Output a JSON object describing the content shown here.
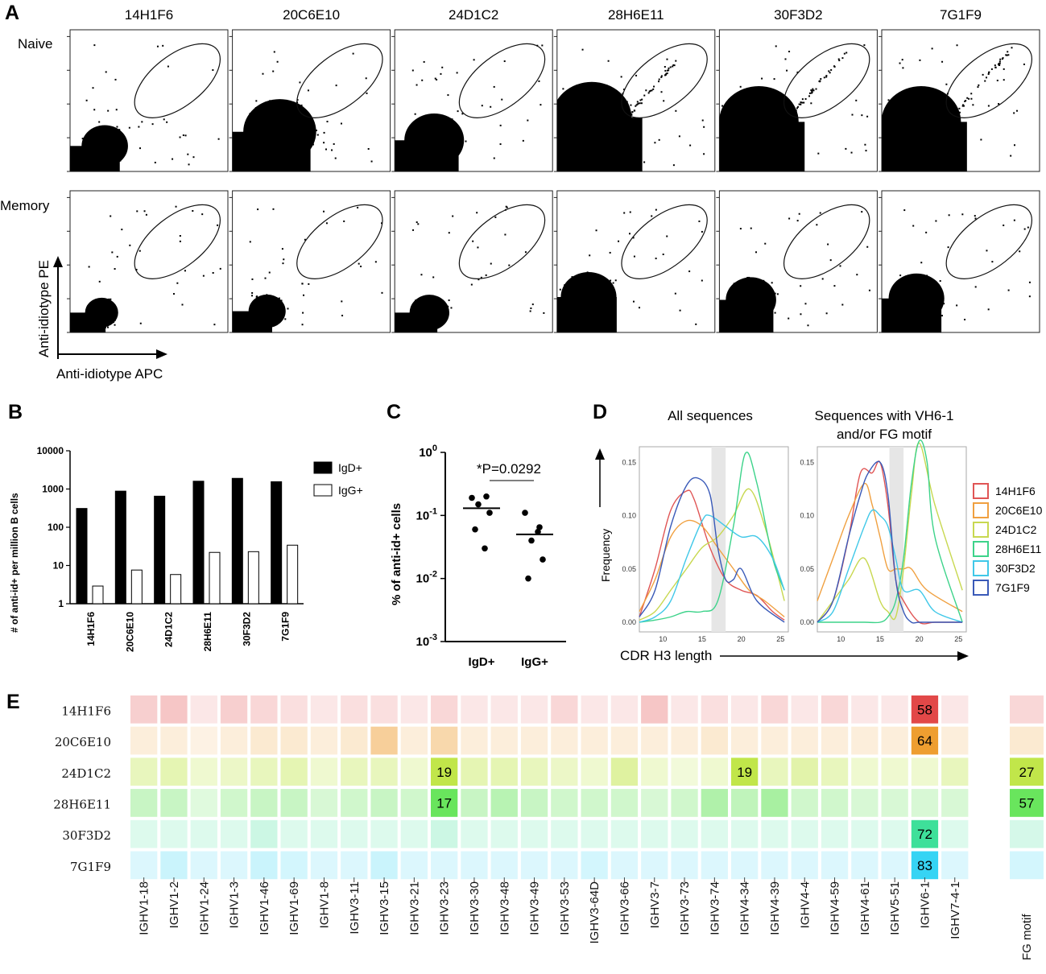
{
  "panelA": {
    "label": "A",
    "clones": [
      "14H1F6",
      "20C6E10",
      "24D1C2",
      "28H6E11",
      "30F3D2",
      "7G1F9"
    ],
    "row_labels": [
      "Naive",
      "Memory"
    ],
    "xlabel": "Anti-idiotype APC",
    "ylabel": "Anti-idiotype PE"
  },
  "panelD": {
    "label": "D",
    "title_left": "All sequences",
    "title_right_line1": "Sequences with VH6-1",
    "title_right_line2": "and/or FG motif",
    "ylabel": "Frequency",
    "xlabel": "CDR H3 length",
    "yticks": [
      "0.00",
      "0.05",
      "0.10",
      "0.15"
    ],
    "xticks": [
      "10",
      "15",
      "20",
      "25"
    ]
  },
  "panelE_label": "E",
  "chart_data": [
    {
      "panel": "B",
      "type": "bar",
      "label": "B",
      "ylabel": "# of anti-id+ per million B cells",
      "yscale": "log",
      "ylim": [
        1,
        10000
      ],
      "yticks": [
        "1",
        "10",
        "100",
        "1000",
        "10000"
      ],
      "categories": [
        "14H1F6",
        "20C6E10",
        "24D1C2",
        "28H6E11",
        "30F3D2",
        "7G1F9"
      ],
      "series": [
        {
          "name": "IgD+",
          "color": "#000000",
          "values": [
            310,
            880,
            650,
            1600,
            1900,
            1550
          ]
        },
        {
          "name": "IgG+",
          "color": "#ffffff",
          "values": [
            2.9,
            7.6,
            5.8,
            22,
            23,
            34
          ]
        }
      ]
    },
    {
      "panel": "C",
      "type": "scatter",
      "label": "C",
      "ylabel": "% of anti-id+ cells",
      "yscale": "log",
      "ylim": [
        0.001,
        1
      ],
      "ytick_base": "10",
      "ytick_exps": [
        "0",
        "-1",
        "-2",
        "-3"
      ],
      "categories": [
        "IgD+",
        "IgG+"
      ],
      "annotation": "*P=0.0292",
      "groups": [
        {
          "name": "IgD+",
          "values": [
            0.19,
            0.2,
            0.15,
            0.11,
            0.06,
            0.03
          ],
          "mean": 0.13
        },
        {
          "name": "IgG+",
          "values": [
            0.11,
            0.065,
            0.04,
            0.02,
            0.01,
            0.055
          ],
          "mean": 0.05
        }
      ]
    },
    {
      "panel": "D",
      "type": "line",
      "label": "D",
      "x_range": [
        7,
        26
      ],
      "y_range": [
        0,
        0.16
      ],
      "highlight_x": [
        16.2,
        18.0
      ],
      "legend": [
        {
          "name": "14H1F6",
          "color": "#e05555"
        },
        {
          "name": "20C6E10",
          "color": "#f0a040"
        },
        {
          "name": "24D1C2",
          "color": "#c8d850"
        },
        {
          "name": "28H6E11",
          "color": "#3dd38a"
        },
        {
          "name": "30F3D2",
          "color": "#40c8e8"
        },
        {
          "name": "7G1F9",
          "color": "#3a5ab8"
        }
      ],
      "subplots": [
        {
          "name": "All sequences",
          "series": [
            {
              "name": "14H1F6",
              "x": [
                7,
                9,
                11,
                13,
                14,
                16,
                18,
                20,
                22,
                24,
                25.5
              ],
              "y": [
                0.005,
                0.05,
                0.105,
                0.123,
                0.115,
                0.07,
                0.04,
                0.03,
                0.025,
                0.01,
                0.002
              ]
            },
            {
              "name": "20C6E10",
              "x": [
                7,
                9,
                11,
                13,
                15,
                17,
                19,
                21,
                23,
                25.5
              ],
              "y": [
                0.01,
                0.04,
                0.08,
                0.095,
                0.09,
                0.07,
                0.05,
                0.03,
                0.02,
                0.005
              ]
            },
            {
              "name": "24D1C2",
              "x": [
                7,
                9,
                11,
                13,
                15,
                17,
                19,
                21,
                23,
                25.5
              ],
              "y": [
                0.002,
                0.01,
                0.03,
                0.05,
                0.07,
                0.08,
                0.1,
                0.125,
                0.09,
                0.02
              ]
            },
            {
              "name": "28H6E11",
              "x": [
                7,
                9,
                11,
                13,
                15,
                17,
                19,
                20.5,
                22,
                24,
                25.5
              ],
              "y": [
                0.0,
                0.002,
                0.005,
                0.01,
                0.01,
                0.02,
                0.09,
                0.158,
                0.13,
                0.06,
                0.03
              ]
            },
            {
              "name": "30F3D2",
              "x": [
                7,
                9,
                11,
                13,
                15,
                16,
                18,
                20,
                22,
                24,
                25.5
              ],
              "y": [
                0.0,
                0.005,
                0.02,
                0.06,
                0.095,
                0.1,
                0.09,
                0.08,
                0.08,
                0.06,
                0.03
              ]
            },
            {
              "name": "7G1F9",
              "x": [
                7,
                9,
                11,
                13,
                14.5,
                16,
                17,
                18,
                19,
                20,
                22,
                25.5
              ],
              "y": [
                0.005,
                0.03,
                0.09,
                0.128,
                0.135,
                0.12,
                0.07,
                0.04,
                0.04,
                0.05,
                0.02,
                0.0
              ]
            }
          ]
        },
        {
          "name": "Sequences with VH6-1 and/or FG motif",
          "series": [
            {
              "name": "14H1F6",
              "x": [
                7,
                9,
                11,
                12.5,
                14,
                15,
                16,
                17,
                18,
                20,
                22,
                25.5
              ],
              "y": [
                0.0,
                0.02,
                0.08,
                0.14,
                0.14,
                0.15,
                0.11,
                0.04,
                0.02,
                0.0,
                0.0,
                0.0
              ]
            },
            {
              "name": "20C6E10",
              "x": [
                7,
                9,
                11,
                13,
                14,
                15,
                16,
                17,
                18,
                19,
                21,
                25.5
              ],
              "y": [
                0.02,
                0.06,
                0.1,
                0.13,
                0.11,
                0.08,
                0.05,
                0.05,
                0.05,
                0.05,
                0.03,
                0.01
              ]
            },
            {
              "name": "24D1C2",
              "x": [
                7,
                9,
                11,
                13,
                15,
                16,
                17,
                18,
                19,
                20,
                22,
                25.5
              ],
              "y": [
                0.0,
                0.02,
                0.04,
                0.06,
                0.02,
                0.01,
                0.005,
                0.05,
                0.12,
                0.168,
                0.11,
                0.03
              ]
            },
            {
              "name": "28H6E11",
              "x": [
                7,
                9,
                11,
                13,
                15,
                16,
                17,
                18,
                19,
                20,
                21,
                22,
                25.5
              ],
              "y": [
                0.0,
                0.0,
                0.0,
                0.0,
                0.0,
                0.005,
                0.02,
                0.06,
                0.13,
                0.17,
                0.15,
                0.08,
                0.0
              ]
            },
            {
              "name": "30F3D2",
              "x": [
                7,
                9,
                11,
                13,
                14,
                15,
                16,
                17,
                18,
                20,
                22,
                25.5
              ],
              "y": [
                0.0,
                0.01,
                0.05,
                0.09,
                0.105,
                0.1,
                0.09,
                0.06,
                0.03,
                0.03,
                0.01,
                0.0
              ]
            },
            {
              "name": "7G1F9",
              "x": [
                7,
                9,
                11,
                12.5,
                13.5,
                15,
                16,
                17,
                18,
                19,
                20,
                22,
                25.5
              ],
              "y": [
                0.0,
                0.02,
                0.08,
                0.12,
                0.14,
                0.15,
                0.12,
                0.04,
                0.01,
                0.0,
                0.0,
                0.0,
                0.0
              ]
            }
          ]
        }
      ]
    },
    {
      "panel": "E",
      "type": "heatmap",
      "label": "E",
      "rows": [
        "14H1F6",
        "20C6E10",
        "24D1C2",
        "28H6E11",
        "30F3D2",
        "7G1F9"
      ],
      "row_colors": [
        "#e24848",
        "#ee9e30",
        "#b6e22a",
        "#4ee040",
        "#3ee09a",
        "#36d4f4"
      ],
      "columns": [
        "IGHV1-18",
        "IGHV1-2",
        "IGHV1-24",
        "IGHV1-3",
        "IGHV1-46",
        "IGHV1-69",
        "IGHV1-8",
        "IGHV3-11",
        "IGHV3-15",
        "IGHV3-21",
        "IGHV3-23",
        "IGHV3-30",
        "IGHV3-48",
        "IGHV3-49",
        "IGHV3-53",
        "IGHV3-64D",
        "IGHV3-66",
        "IGHV3-7",
        "IGHV3-73",
        "IGHV3-74",
        "IGHV4-34",
        "IGHV4-39",
        "IGHV4-4",
        "IGHV4-59",
        "IGHV4-61",
        "IGHV5-51",
        "IGHV6-1",
        "IGHV7-4-1"
      ],
      "values": [
        [
          5,
          6,
          2,
          5,
          4,
          3,
          2,
          3,
          3,
          2,
          4,
          2,
          2,
          2,
          4,
          2,
          2,
          6,
          2,
          3,
          2,
          4,
          2,
          4,
          2,
          2,
          58,
          2
        ],
        [
          3,
          3,
          2,
          3,
          4,
          4,
          3,
          4,
          10,
          3,
          8,
          3,
          3,
          3,
          3,
          3,
          3,
          3,
          3,
          4,
          3,
          3,
          3,
          3,
          3,
          3,
          64,
          3
        ],
        [
          6,
          7,
          4,
          5,
          6,
          7,
          4,
          6,
          6,
          4,
          19,
          7,
          7,
          6,
          5,
          4,
          9,
          4,
          3,
          4,
          19,
          6,
          8,
          6,
          4,
          4,
          4,
          6
        ],
        [
          6,
          6,
          3,
          5,
          6,
          6,
          4,
          5,
          6,
          5,
          17,
          6,
          8,
          6,
          5,
          5,
          5,
          4,
          5,
          9,
          7,
          10,
          5,
          5,
          4,
          4,
          4,
          4
        ],
        [
          3,
          3,
          3,
          3,
          5,
          3,
          3,
          3,
          3,
          3,
          5,
          3,
          3,
          3,
          3,
          3,
          3,
          3,
          3,
          3,
          3,
          3,
          3,
          3,
          3,
          3,
          72,
          3
        ],
        [
          3,
          5,
          3,
          3,
          5,
          4,
          3,
          3,
          5,
          3,
          3,
          3,
          3,
          3,
          3,
          4,
          3,
          3,
          3,
          3,
          3,
          3,
          3,
          3,
          3,
          3,
          83,
          3
        ]
      ],
      "labeled_cells": [
        {
          "row": 0,
          "col": 26,
          "text": "58"
        },
        {
          "row": 1,
          "col": 26,
          "text": "64"
        },
        {
          "row": 2,
          "col": 10,
          "text": "19"
        },
        {
          "row": 2,
          "col": 20,
          "text": "19"
        },
        {
          "row": 3,
          "col": 10,
          "text": "17"
        },
        {
          "row": 4,
          "col": 26,
          "text": "72"
        },
        {
          "row": 5,
          "col": 26,
          "text": "83"
        }
      ],
      "fg_motif": {
        "label": "FG motif",
        "values": [
          4,
          4,
          27,
          57,
          4,
          4
        ],
        "labels": [
          "",
          "",
          "27",
          "57",
          "",
          ""
        ]
      }
    }
  ]
}
